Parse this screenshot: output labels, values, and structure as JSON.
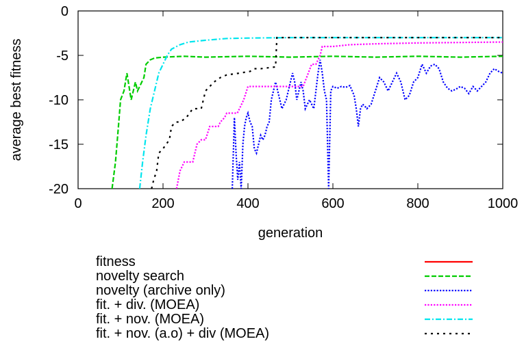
{
  "chart_data": {
    "type": "line",
    "title": "",
    "xlabel": "generation",
    "ylabel": "average best fitness",
    "xlim": [
      0,
      1000
    ],
    "ylim": [
      -20,
      0
    ],
    "x_ticks": [
      0,
      200,
      400,
      600,
      800,
      1000
    ],
    "y_ticks": [
      0,
      -5,
      -10,
      -15,
      -20
    ],
    "x_tick_labels": [
      "0",
      "200",
      "400",
      "600",
      "800",
      "1000"
    ],
    "y_tick_labels": [
      "0",
      "-5",
      "-10",
      "-15",
      "-20"
    ],
    "grid": false,
    "legend_position": "below",
    "series": [
      {
        "name": "fitness",
        "color": "#ff0000",
        "dash": "solid",
        "points": []
      },
      {
        "name": "novelty search",
        "color": "#00cc00",
        "dash": "dashed",
        "points": [
          [
            80,
            -20
          ],
          [
            88,
            -17
          ],
          [
            95,
            -13
          ],
          [
            100,
            -10
          ],
          [
            108,
            -9
          ],
          [
            115,
            -7
          ],
          [
            120,
            -8.5
          ],
          [
            125,
            -10
          ],
          [
            130,
            -9
          ],
          [
            135,
            -8
          ],
          [
            140,
            -9
          ],
          [
            145,
            -8.5
          ],
          [
            150,
            -8
          ],
          [
            155,
            -7.5
          ],
          [
            160,
            -6
          ],
          [
            170,
            -5.5
          ],
          [
            180,
            -5.3
          ],
          [
            200,
            -5.2
          ],
          [
            250,
            -5.1
          ],
          [
            300,
            -5.2
          ],
          [
            400,
            -5.1
          ],
          [
            500,
            -5.2
          ],
          [
            600,
            -5.1
          ],
          [
            700,
            -5.2
          ],
          [
            800,
            -5.1
          ],
          [
            900,
            -5.2
          ],
          [
            1000,
            -5.1
          ]
        ]
      },
      {
        "name": "novelty (archive only)",
        "color": "#0000ff",
        "dash": "dotted",
        "points": [
          [
            363,
            -20
          ],
          [
            368,
            -12
          ],
          [
            372,
            -16
          ],
          [
            376,
            -19
          ],
          [
            380,
            -17
          ],
          [
            384,
            -20
          ],
          [
            388,
            -15
          ],
          [
            392,
            -13
          ],
          [
            396,
            -12
          ],
          [
            400,
            -11.5
          ],
          [
            405,
            -12.5
          ],
          [
            410,
            -13
          ],
          [
            415,
            -15.5
          ],
          [
            420,
            -16
          ],
          [
            425,
            -15
          ],
          [
            430,
            -14
          ],
          [
            435,
            -14.5
          ],
          [
            440,
            -14
          ],
          [
            445,
            -13
          ],
          [
            450,
            -12.5
          ],
          [
            455,
            -10
          ],
          [
            460,
            -9
          ],
          [
            465,
            -8
          ],
          [
            470,
            -9
          ],
          [
            475,
            -10
          ],
          [
            480,
            -11
          ],
          [
            485,
            -10.5
          ],
          [
            490,
            -10
          ],
          [
            495,
            -9
          ],
          [
            500,
            -8
          ],
          [
            505,
            -7
          ],
          [
            510,
            -8
          ],
          [
            515,
            -10
          ],
          [
            520,
            -9
          ],
          [
            525,
            -8
          ],
          [
            530,
            -9
          ],
          [
            535,
            -11
          ],
          [
            540,
            -10.5
          ],
          [
            545,
            -10
          ],
          [
            550,
            -10.5
          ],
          [
            555,
            -11
          ],
          [
            560,
            -9
          ],
          [
            565,
            -7
          ],
          [
            570,
            -5.5
          ],
          [
            575,
            -7
          ],
          [
            580,
            -9
          ],
          [
            585,
            -10
          ],
          [
            590,
            -20
          ],
          [
            595,
            -9
          ],
          [
            600,
            -8.5
          ],
          [
            610,
            -8.7
          ],
          [
            620,
            -8.5
          ],
          [
            630,
            -8.6
          ],
          [
            640,
            -8.4
          ],
          [
            650,
            -9.5
          ],
          [
            655,
            -11
          ],
          [
            660,
            -13
          ],
          [
            665,
            -11
          ],
          [
            670,
            -10.5
          ],
          [
            675,
            -10.7
          ],
          [
            680,
            -11
          ],
          [
            690,
            -10.5
          ],
          [
            700,
            -9
          ],
          [
            710,
            -7.5
          ],
          [
            720,
            -8
          ],
          [
            730,
            -9
          ],
          [
            740,
            -8
          ],
          [
            750,
            -7
          ],
          [
            760,
            -8
          ],
          [
            770,
            -10
          ],
          [
            780,
            -9.5
          ],
          [
            790,
            -8
          ],
          [
            800,
            -7.5
          ],
          [
            810,
            -6
          ],
          [
            820,
            -7
          ],
          [
            830,
            -6.2
          ],
          [
            840,
            -6
          ],
          [
            850,
            -6.5
          ],
          [
            860,
            -8
          ],
          [
            870,
            -8.7
          ],
          [
            880,
            -9
          ],
          [
            890,
            -8.8
          ],
          [
            900,
            -8.5
          ],
          [
            910,
            -8.7
          ],
          [
            920,
            -9.3
          ],
          [
            930,
            -8.5
          ],
          [
            940,
            -9
          ],
          [
            950,
            -8.5
          ],
          [
            960,
            -8
          ],
          [
            970,
            -7
          ],
          [
            980,
            -6.5
          ],
          [
            990,
            -6.8
          ],
          [
            1000,
            -7
          ]
        ]
      },
      {
        "name": "fit. + div. (MOEA)",
        "color": "#ff00ff",
        "dash": "dotted",
        "points": [
          [
            232,
            -20
          ],
          [
            240,
            -18
          ],
          [
            250,
            -17
          ],
          [
            270,
            -17
          ],
          [
            275,
            -16
          ],
          [
            280,
            -15
          ],
          [
            290,
            -14.5
          ],
          [
            300,
            -14.5
          ],
          [
            310,
            -13
          ],
          [
            330,
            -13
          ],
          [
            335,
            -12.5
          ],
          [
            345,
            -12
          ],
          [
            350,
            -11.5
          ],
          [
            360,
            -11.5
          ],
          [
            375,
            -11.5
          ],
          [
            390,
            -10
          ],
          [
            400,
            -8.5
          ],
          [
            450,
            -8.5
          ],
          [
            480,
            -8.5
          ],
          [
            495,
            -8.5
          ],
          [
            530,
            -8.5
          ],
          [
            550,
            -6
          ],
          [
            560,
            -6
          ],
          [
            570,
            -5
          ],
          [
            575,
            -4
          ],
          [
            600,
            -4
          ],
          [
            640,
            -3.8
          ],
          [
            700,
            -3.7
          ],
          [
            800,
            -3.6
          ],
          [
            1000,
            -3.5
          ]
        ]
      },
      {
        "name": "fit. + nov. (MOEA)",
        "color": "#00e5ee",
        "dash": "dashdot",
        "points": [
          [
            145,
            -20
          ],
          [
            152,
            -17
          ],
          [
            160,
            -14
          ],
          [
            170,
            -11
          ],
          [
            180,
            -9
          ],
          [
            190,
            -7
          ],
          [
            200,
            -6
          ],
          [
            210,
            -5
          ],
          [
            220,
            -4.3
          ],
          [
            240,
            -3.8
          ],
          [
            260,
            -3.5
          ],
          [
            300,
            -3.3
          ],
          [
            350,
            -3.1
          ],
          [
            400,
            -3.05
          ],
          [
            500,
            -3.0
          ],
          [
            700,
            -3.0
          ],
          [
            1000,
            -3.0
          ]
        ]
      },
      {
        "name": "fit. + nov. (a.o) + div (MOEA)",
        "color": "#000000",
        "dash": "dotted",
        "points": [
          [
            173,
            -20
          ],
          [
            178,
            -19
          ],
          [
            185,
            -18
          ],
          [
            190,
            -16
          ],
          [
            200,
            -15.5
          ],
          [
            215,
            -14.5
          ],
          [
            220,
            -13
          ],
          [
            230,
            -12.5
          ],
          [
            240,
            -12.5
          ],
          [
            255,
            -12
          ],
          [
            270,
            -11
          ],
          [
            290,
            -11
          ],
          [
            295,
            -10
          ],
          [
            300,
            -9
          ],
          [
            320,
            -8
          ],
          [
            335,
            -7.5
          ],
          [
            350,
            -7.2
          ],
          [
            380,
            -7
          ],
          [
            405,
            -6.8
          ],
          [
            415,
            -6.5
          ],
          [
            430,
            -6.5
          ],
          [
            465,
            -6.3
          ],
          [
            468,
            -3
          ],
          [
            500,
            -3
          ],
          [
            600,
            -3
          ],
          [
            700,
            -3
          ],
          [
            1000,
            -3
          ]
        ]
      }
    ]
  }
}
